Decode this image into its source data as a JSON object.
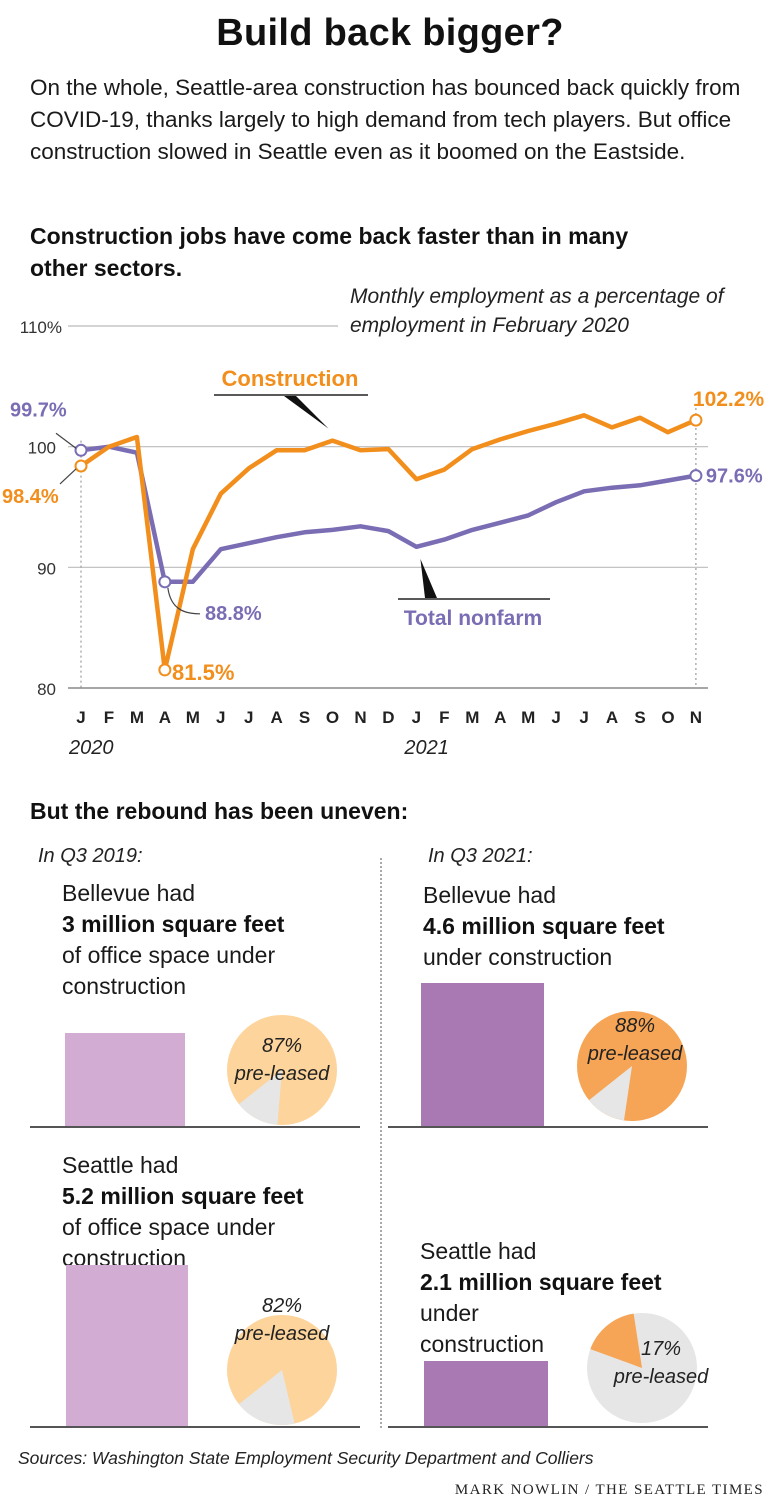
{
  "headline": "Build back bigger?",
  "intro": "On the whole, Seattle-area construction has bounced back quickly from COVID-19, thanks largely to high demand from tech players. But office construction slowed in Seattle even as it boomed on the Eastside.",
  "colors": {
    "construction": "#f28e1c",
    "total_nonfarm": "#7b6db4",
    "bar_2019": "#d3acd3",
    "bar_2021": "#a979b4",
    "pie_light": "#fdd49b",
    "pie_dark": "#f6a556",
    "pie_remainder": "#e6e6e6",
    "gridline": "#bbbbbb"
  },
  "chart_data": [
    {
      "type": "line",
      "title": "Construction jobs have come back faster than in many other sectors.",
      "subtitle": "Monthly employment as a percentage of employment in February 2020",
      "x": [
        "J",
        "F",
        "M",
        "A",
        "M",
        "J",
        "J",
        "A",
        "S",
        "O",
        "N",
        "D",
        "J",
        "F",
        "M",
        "A",
        "M",
        "J",
        "J",
        "A",
        "S",
        "O",
        "N"
      ],
      "year_labels": [
        {
          "index": 0,
          "label": "2020"
        },
        {
          "index": 12,
          "label": "2021"
        }
      ],
      "ylim": [
        80,
        110
      ],
      "yticks": [
        {
          "value": 110,
          "label": "110%"
        },
        {
          "value": 100,
          "label": "100"
        },
        {
          "value": 90,
          "label": "90"
        },
        {
          "value": 80,
          "label": "80"
        }
      ],
      "series": [
        {
          "name": "Construction",
          "color": "#f28e1c",
          "values": [
            98.4,
            100.0,
            100.8,
            81.5,
            91.5,
            96.1,
            98.2,
            99.7,
            99.7,
            100.5,
            99.7,
            99.8,
            97.3,
            98.1,
            99.8,
            100.6,
            101.3,
            101.9,
            102.6,
            101.6,
            102.4,
            101.2,
            102.2
          ]
        },
        {
          "name": "Total nonfarm",
          "color": "#7b6db4",
          "values": [
            99.7,
            100.0,
            99.5,
            88.8,
            88.8,
            91.5,
            92.0,
            92.5,
            92.9,
            93.1,
            93.4,
            93.0,
            91.7,
            92.3,
            93.1,
            93.7,
            94.3,
            95.4,
            96.3,
            96.6,
            96.8,
            97.2,
            97.6
          ]
        }
      ],
      "annotations": {
        "construction_start": "98.4%",
        "construction_low": "81.5%",
        "construction_end": "102.2%",
        "nonfarm_start": "99.7%",
        "nonfarm_low": "88.8%",
        "nonfarm_end": "97.6%"
      }
    },
    {
      "type": "bar",
      "title": "But the rebound has been uneven:",
      "unit": "million square feet of office space under construction",
      "categories": [
        "Bellevue Q3 2019",
        "Bellevue Q3 2021",
        "Seattle Q3 2019",
        "Seattle Q3 2021"
      ],
      "values": [
        3,
        4.6,
        5.2,
        2.1
      ]
    },
    {
      "type": "pie",
      "title": "Share pre-leased",
      "categories": [
        "Bellevue Q3 2019",
        "Bellevue Q3 2021",
        "Seattle Q3 2019",
        "Seattle Q3 2021"
      ],
      "values": [
        87,
        88,
        82,
        17
      ]
    }
  ],
  "rebound": {
    "heading": "But the rebound has been uneven:",
    "period_2019": "In Q3 2019:",
    "period_2021": "In Q3 2021:",
    "bellevue_2019": {
      "line1": "Bellevue had",
      "amount": "3 million square feet",
      "rest1": "of office space under",
      "rest2": "construction",
      "pre_leased_pct": "87%",
      "pre_leased_label": "pre-leased"
    },
    "bellevue_2021": {
      "line1": "Bellevue had",
      "amount": "4.6 million square feet",
      "rest1": "under construction",
      "pre_leased_pct": "88%",
      "pre_leased_label": "pre-leased"
    },
    "seattle_2019": {
      "line1": "Seattle had",
      "amount": "5.2 million square feet",
      "rest1": "of office space under",
      "rest2": "construction",
      "pre_leased_pct": "82%",
      "pre_leased_label": "pre-leased"
    },
    "seattle_2021": {
      "line1": "Seattle had",
      "amount": "2.1 million square feet",
      "rest1": "under",
      "rest2": "construction",
      "pre_leased_pct": "17%",
      "pre_leased_label": "pre-leased"
    }
  },
  "footer": {
    "source": "Sources: Washington State Employment Security Department and Colliers",
    "credit": "MARK NOWLIN / THE SEATTLE TIMES"
  }
}
